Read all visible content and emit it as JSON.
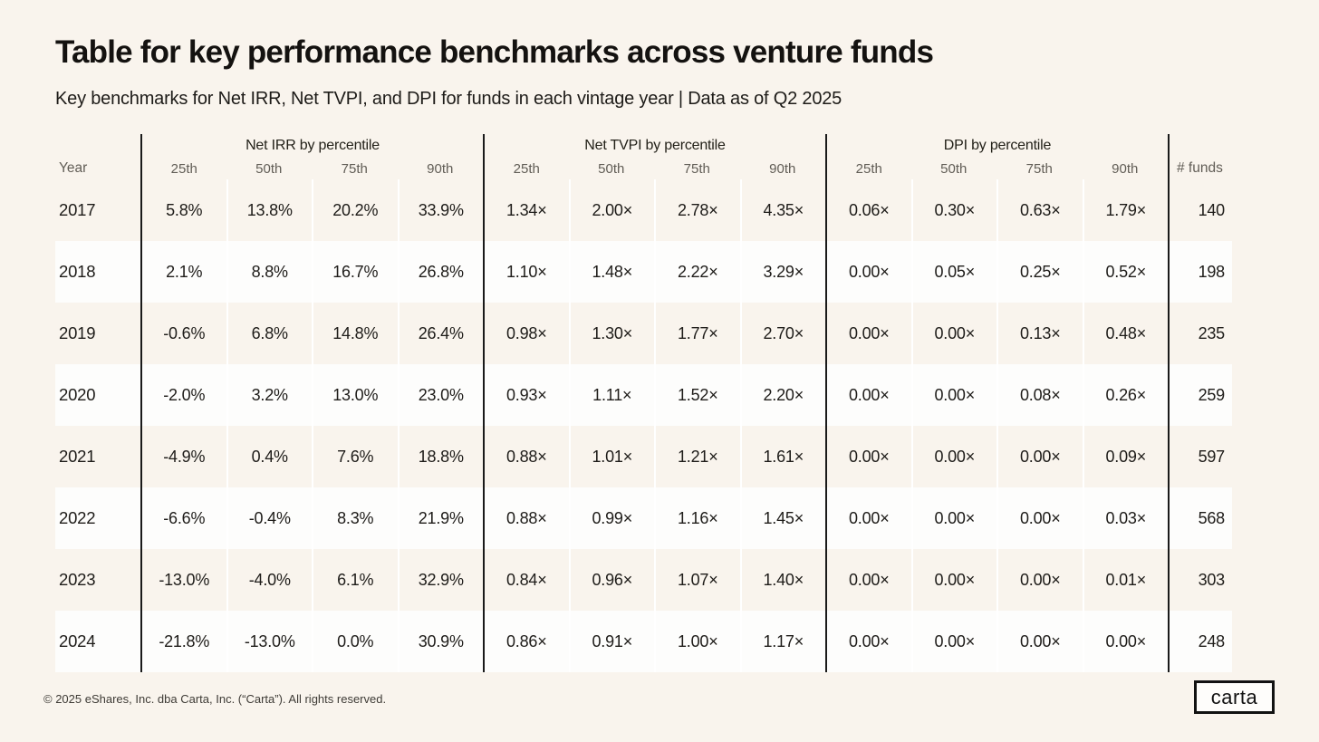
{
  "colors": {
    "background": "#f9f4ed",
    "row_stripe_white": "#fdfdfc",
    "divider_black": "#1a1a1a",
    "text_dark": "#1e1c19",
    "text_muted": "#615d56"
  },
  "page": {
    "footer": "© 2025 eShares, Inc. dba Carta, Inc. (“Carta”). All rights reserved.",
    "logo_text": "carta"
  },
  "chart_data": {
    "type": "table",
    "title": "Table for key performance benchmarks across venture funds",
    "subtitle": "Key benchmarks for Net IRR, Net TVPI, and DPI for funds in each vintage year | Data as of Q2 2025",
    "year_header": "Year",
    "funds_header": "# funds",
    "column_groups": [
      "Net IRR by percentile",
      "Net TVPI by percentile",
      "DPI by percentile"
    ],
    "percentiles": [
      "25th",
      "50th",
      "75th",
      "90th"
    ],
    "rows": [
      {
        "year": "2017",
        "net_irr": [
          "5.8%",
          "13.8%",
          "20.2%",
          "33.9%"
        ],
        "net_tvpi": [
          "1.34×",
          "2.00×",
          "2.78×",
          "4.35×"
        ],
        "dpi": [
          "0.06×",
          "0.30×",
          "0.63×",
          "1.79×"
        ],
        "funds": "140"
      },
      {
        "year": "2018",
        "net_irr": [
          "2.1%",
          "8.8%",
          "16.7%",
          "26.8%"
        ],
        "net_tvpi": [
          "1.10×",
          "1.48×",
          "2.22×",
          "3.29×"
        ],
        "dpi": [
          "0.00×",
          "0.05×",
          "0.25×",
          "0.52×"
        ],
        "funds": "198"
      },
      {
        "year": "2019",
        "net_irr": [
          "-0.6%",
          "6.8%",
          "14.8%",
          "26.4%"
        ],
        "net_tvpi": [
          "0.98×",
          "1.30×",
          "1.77×",
          "2.70×"
        ],
        "dpi": [
          "0.00×",
          "0.00×",
          "0.13×",
          "0.48×"
        ],
        "funds": "235"
      },
      {
        "year": "2020",
        "net_irr": [
          "-2.0%",
          "3.2%",
          "13.0%",
          "23.0%"
        ],
        "net_tvpi": [
          "0.93×",
          "1.11×",
          "1.52×",
          "2.20×"
        ],
        "dpi": [
          "0.00×",
          "0.00×",
          "0.08×",
          "0.26×"
        ],
        "funds": "259"
      },
      {
        "year": "2021",
        "net_irr": [
          "-4.9%",
          "0.4%",
          "7.6%",
          "18.8%"
        ],
        "net_tvpi": [
          "0.88×",
          "1.01×",
          "1.21×",
          "1.61×"
        ],
        "dpi": [
          "0.00×",
          "0.00×",
          "0.00×",
          "0.09×"
        ],
        "funds": "597"
      },
      {
        "year": "2022",
        "net_irr": [
          "-6.6%",
          "-0.4%",
          "8.3%",
          "21.9%"
        ],
        "net_tvpi": [
          "0.88×",
          "0.99×",
          "1.16×",
          "1.45×"
        ],
        "dpi": [
          "0.00×",
          "0.00×",
          "0.00×",
          "0.03×"
        ],
        "funds": "568"
      },
      {
        "year": "2023",
        "net_irr": [
          "-13.0%",
          "-4.0%",
          "6.1%",
          "32.9%"
        ],
        "net_tvpi": [
          "0.84×",
          "0.96×",
          "1.07×",
          "1.40×"
        ],
        "dpi": [
          "0.00×",
          "0.00×",
          "0.00×",
          "0.01×"
        ],
        "funds": "303"
      },
      {
        "year": "2024",
        "net_irr": [
          "-21.8%",
          "-13.0%",
          "0.0%",
          "30.9%"
        ],
        "net_tvpi": [
          "0.86×",
          "0.91×",
          "1.00×",
          "1.17×"
        ],
        "dpi": [
          "0.00×",
          "0.00×",
          "0.00×",
          "0.00×"
        ],
        "funds": "248"
      }
    ]
  }
}
